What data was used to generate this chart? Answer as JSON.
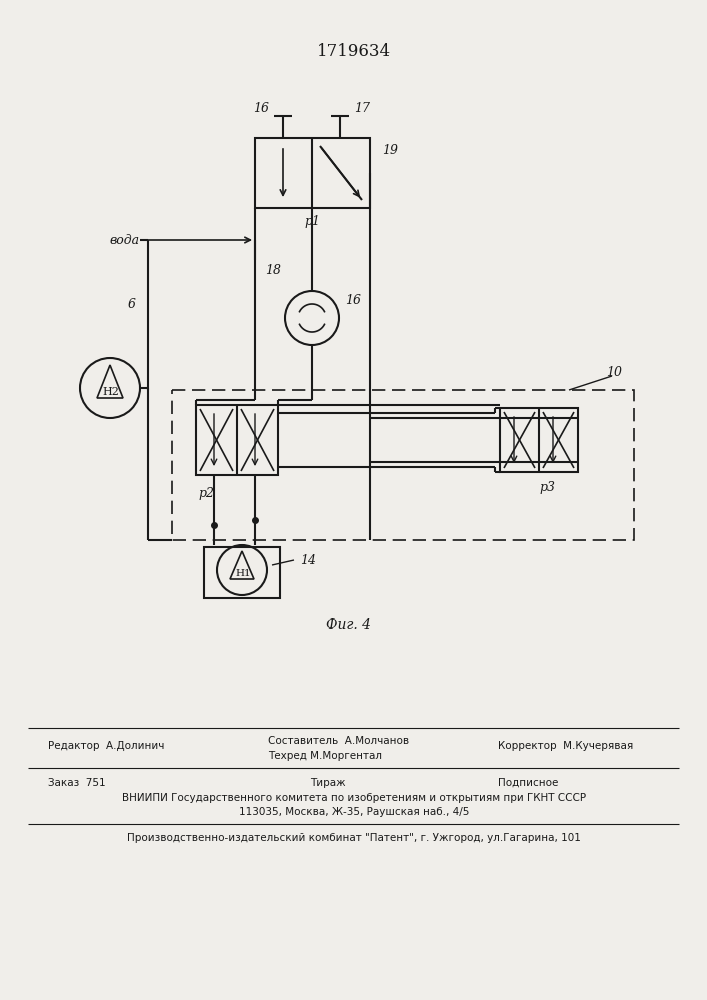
{
  "title": "1719634",
  "fig_label": "Фиг. 4",
  "background_color": "#f0eeea",
  "line_color": "#1a1a1a",
  "label_16_top": "16",
  "label_17": "17",
  "label_19": "19",
  "label_p1": "р1",
  "label_voda": "вода",
  "label_18": "18",
  "label_6": "6",
  "label_16b": "16",
  "label_h2": "Н2",
  "label_10": "10",
  "label_p2": "р2",
  "label_p3": "р3",
  "label_h1": "Н1",
  "label_14": "14",
  "footer_line1_left": "Редактор  А.Долинич",
  "footer_line1_mid1": "Составитель  А.Молчанов",
  "footer_line1_mid2": "Техред М.Моргентал",
  "footer_line1_right": "Корректор  М.Кучерявая",
  "footer_line2_left": "Заказ  751",
  "footer_line2_mid": "Тираж",
  "footer_line2_right": "Подписное",
  "footer_vniip": "ВНИИПИ Государственного комитета по изобретениям и открытиям при ГКНТ СССР",
  "footer_address": "113035, Москва, Ж-35, Раушская наб., 4/5",
  "footer_publisher": "Производственно-издательский комбинат \"Патент\", г. Ужгород, ул.Гагарина, 101"
}
